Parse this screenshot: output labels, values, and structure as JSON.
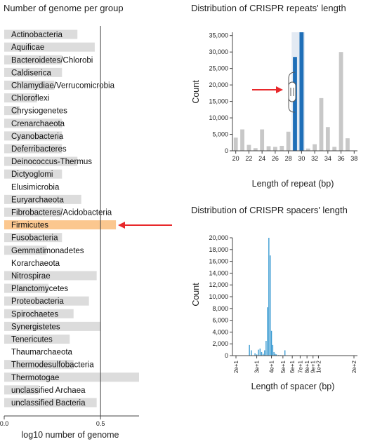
{
  "colors": {
    "bar_default": "#dcdcdc",
    "bar_highlight": "#fbc78f",
    "repeat_bar": "#c8c8c8",
    "repeat_selected": "#1f6fb8",
    "repeat_band": "#e3eaf3",
    "spacer_bar": "#3b9bd2",
    "arrow": "#e8282b"
  },
  "chart_data": [
    {
      "type": "bar",
      "orientation": "horizontal",
      "title": "Number of genome per group",
      "xlabel": "log10 number of genome",
      "xlim": [
        0,
        0.7
      ],
      "xticks": [
        0,
        0.5
      ],
      "xtick_labels": [
        "0.0",
        "0.5"
      ],
      "reference_line_x": 0.5,
      "highlighted": "Firmicutes",
      "categories": [
        "Actinobacteria",
        "Aquificae",
        "Bacteroidetes/Chlorobi",
        "Caldiserica",
        "Chlamydiae/Verrucomicrobia",
        "Chloroflexi",
        "Chrysiogenetes",
        "Crenarchaeota",
        "Cyanobacteria",
        "Deferribacteres",
        "Deinococcus-Thermus",
        "Dictyoglomi",
        "Elusimicrobia",
        "Euryarchaeota",
        "Fibrobacteres/Acidobacteria",
        "Firmicutes",
        "Fusobacteria",
        "Gemmatimonadetes",
        "Korarchaeota",
        "Nitrospirae",
        "Planctomycetes",
        "Proteobacteria",
        "Spirochaetes",
        "Synergistetes",
        "Tenericutes",
        "Thaumarchaeota",
        "Thermodesulfobacteria",
        "Thermotogae",
        "unclassified Archaea",
        "unclassified Bacteria"
      ],
      "values": [
        0.38,
        0.47,
        0.3,
        0.3,
        0.26,
        0.17,
        0.08,
        0.3,
        0.3,
        0.3,
        0.38,
        0.3,
        0.0,
        0.4,
        0.3,
        0.58,
        0.3,
        0.22,
        0.0,
        0.48,
        0.23,
        0.44,
        0.36,
        0.5,
        0.34,
        0.0,
        0.36,
        0.7,
        0.18,
        0.48
      ]
    },
    {
      "type": "bar",
      "title": "Distribution of CRISPR repeats' length",
      "xlabel": "Length of repeat (bp)",
      "ylabel": "Count",
      "xlim": [
        19.5,
        38.5
      ],
      "ylim": [
        0,
        36000
      ],
      "xticks": [
        20,
        22,
        24,
        26,
        28,
        30,
        32,
        34,
        36,
        38
      ],
      "yticks": [
        0,
        5000,
        10000,
        15000,
        20000,
        25000,
        30000,
        35000
      ],
      "ytick_labels": [
        "0",
        "5,000",
        "10,000",
        "15,000",
        "20,000",
        "25,000",
        "30,000",
        "35,000"
      ],
      "selected_range": [
        28.5,
        30.5
      ],
      "x": [
        20,
        21,
        22,
        23,
        24,
        25,
        26,
        27,
        28,
        29,
        30,
        31,
        32,
        33,
        34,
        35,
        36,
        37
      ],
      "values": [
        4000,
        6500,
        1800,
        800,
        6500,
        1400,
        1200,
        1500,
        5800,
        28500,
        36000,
        700,
        2000,
        16000,
        7200,
        1200,
        30000,
        3800
      ],
      "selected_x": [
        29,
        30
      ]
    },
    {
      "type": "bar",
      "title": "Distribution of CRISPR spacers' length",
      "xlabel": "Length of spacer (bp)",
      "ylabel": "Count",
      "ylim": [
        0,
        20000
      ],
      "xscale": "log",
      "xlim": [
        20,
        200
      ],
      "xticks": [
        20,
        30,
        40,
        50,
        60,
        70,
        80,
        90,
        100,
        200
      ],
      "xtick_labels": [
        "2e+1",
        "3e+1",
        "4e+1",
        "5e+1",
        "6e+1",
        "7e+1",
        "8e+1",
        "9e+1",
        "1e+2",
        "2e+2"
      ],
      "yticks": [
        0,
        2000,
        4000,
        6000,
        8000,
        10000,
        12000,
        14000,
        16000,
        18000,
        20000
      ],
      "ytick_labels": [
        "0",
        "2,000",
        "4,000",
        "6,000",
        "8,000",
        "10,000",
        "12,000",
        "14,000",
        "16,000",
        "18,000",
        "20,000"
      ],
      "x": [
        26,
        27,
        29,
        30,
        31,
        32,
        33,
        34,
        35,
        36,
        37,
        38,
        39,
        40,
        41,
        42,
        43,
        44,
        46,
        48,
        52
      ],
      "values": [
        1800,
        900,
        400,
        200,
        1000,
        1200,
        600,
        300,
        900,
        2500,
        8200,
        20000,
        17000,
        4200,
        1800,
        600,
        300,
        200,
        100,
        100,
        900
      ]
    }
  ]
}
